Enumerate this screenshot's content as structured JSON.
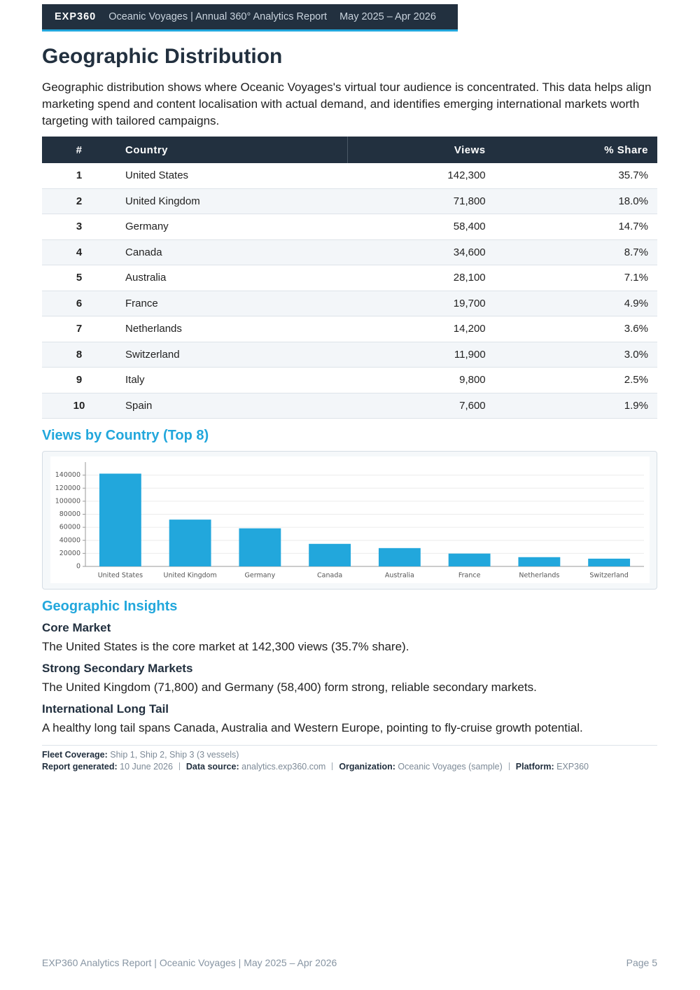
{
  "header": {
    "brand": "EXP360",
    "title": "Oceanic Voyages | Annual 360° Analytics Report",
    "period": "May 2025 – Apr 2026"
  },
  "section": {
    "title": "Geographic Distribution",
    "intro": "Geographic distribution shows where Oceanic Voyages's virtual tour audience is concentrated. This data helps align marketing spend and content localisation with actual demand, and identifies emerging international markets worth targeting with tailored campaigns."
  },
  "table": {
    "columns": [
      "#",
      "Country",
      "Views",
      "% Share"
    ],
    "rows": [
      [
        "1",
        "United States",
        "142,300",
        "35.7%"
      ],
      [
        "2",
        "United Kingdom",
        "71,800",
        "18.0%"
      ],
      [
        "3",
        "Germany",
        "58,400",
        "14.7%"
      ],
      [
        "4",
        "Canada",
        "34,600",
        "8.7%"
      ],
      [
        "5",
        "Australia",
        "28,100",
        "7.1%"
      ],
      [
        "6",
        "France",
        "19,700",
        "4.9%"
      ],
      [
        "7",
        "Netherlands",
        "14,200",
        "3.6%"
      ],
      [
        "8",
        "Switzerland",
        "11,900",
        "3.0%"
      ],
      [
        "9",
        "Italy",
        "9,800",
        "2.5%"
      ],
      [
        "10",
        "Spain",
        "7,600",
        "1.9%"
      ]
    ]
  },
  "chart_data": {
    "type": "bar",
    "title": "Views by Country (Top 8)",
    "categories": [
      "United States",
      "United Kingdom",
      "Germany",
      "Canada",
      "Australia",
      "France",
      "Netherlands",
      "Switzerland"
    ],
    "values": [
      142300,
      71800,
      58400,
      34600,
      28100,
      19700,
      14200,
      11900
    ],
    "color": "#22a7dc",
    "ylim": [
      0,
      160000
    ],
    "yticks": [
      0,
      20000,
      40000,
      60000,
      80000,
      100000,
      120000,
      140000
    ],
    "grid": true
  },
  "insights": {
    "title": "Geographic Insights",
    "items": [
      {
        "heading": "Core Market",
        "text": "The United States is the core market at 142,300 views (35.7% share)."
      },
      {
        "heading": "Strong Secondary Markets",
        "text": "The United Kingdom (71,800) and Germany (58,400) form strong, reliable secondary markets."
      },
      {
        "heading": "International Long Tail",
        "text": "A healthy long tail spans Canada, Australia and Western Europe, pointing to fly-cruise growth potential."
      }
    ]
  },
  "meta": {
    "line1": [
      {
        "label": "Fleet Coverage:",
        "value": "Ship 1, Ship 2, Ship 3 (3 vessels)"
      }
    ],
    "line2": [
      {
        "label": "Report generated:",
        "value": "10 June 2026"
      },
      {
        "label": "Data source:",
        "value": "analytics.exp360.com"
      },
      {
        "label": "Organization:",
        "value": "Oceanic Voyages (sample)"
      },
      {
        "label": "Platform:",
        "value": "EXP360"
      }
    ]
  },
  "footer": {
    "left": "EXP360 Analytics Report | Oceanic Voyages | May 2025 – Apr 2026",
    "page": "Page 5"
  }
}
